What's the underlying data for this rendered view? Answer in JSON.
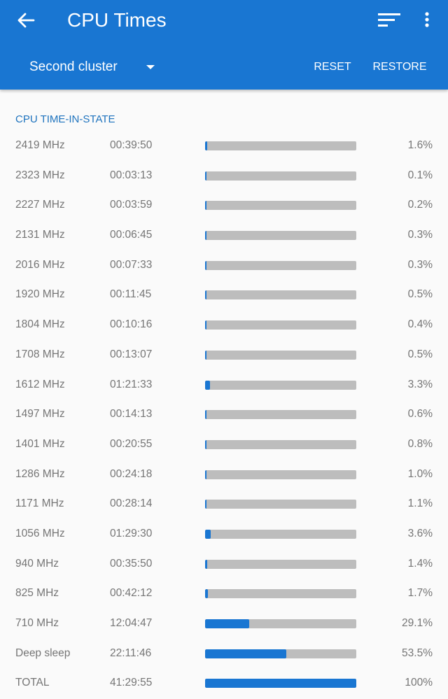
{
  "header": {
    "title": "CPU Times",
    "cluster_selected": "Second cluster",
    "reset_label": "RESET",
    "restore_label": "RESTORE",
    "icons": [
      "back-arrow-icon",
      "sort-icon",
      "more-vert-icon",
      "dropdown-arrow-icon"
    ],
    "colors": {
      "appbar": "#1976d2",
      "accent_text": "#1e73be",
      "bar_fill": "#1976d2",
      "bar_track": "#bdbdbd"
    }
  },
  "section": {
    "title": "CPU TIME-IN-STATE"
  },
  "rows": [
    {
      "freq": "2419 MHz",
      "time": "00:39:50",
      "pct": "1.6%",
      "fraction": 0.016
    },
    {
      "freq": "2323 MHz",
      "time": "00:03:13",
      "pct": "0.1%",
      "fraction": 0.001
    },
    {
      "freq": "2227 MHz",
      "time": "00:03:59",
      "pct": "0.2%",
      "fraction": 0.002
    },
    {
      "freq": "2131 MHz",
      "time": "00:06:45",
      "pct": "0.3%",
      "fraction": 0.003
    },
    {
      "freq": "2016 MHz",
      "time": "00:07:33",
      "pct": "0.3%",
      "fraction": 0.003
    },
    {
      "freq": "1920 MHz",
      "time": "00:11:45",
      "pct": "0.5%",
      "fraction": 0.005
    },
    {
      "freq": "1804 MHz",
      "time": "00:10:16",
      "pct": "0.4%",
      "fraction": 0.004
    },
    {
      "freq": "1708 MHz",
      "time": "00:13:07",
      "pct": "0.5%",
      "fraction": 0.005
    },
    {
      "freq": "1612 MHz",
      "time": "01:21:33",
      "pct": "3.3%",
      "fraction": 0.033
    },
    {
      "freq": "1497 MHz",
      "time": "00:14:13",
      "pct": "0.6%",
      "fraction": 0.006
    },
    {
      "freq": "1401 MHz",
      "time": "00:20:55",
      "pct": "0.8%",
      "fraction": 0.008
    },
    {
      "freq": "1286 MHz",
      "time": "00:24:18",
      "pct": "1.0%",
      "fraction": 0.01
    },
    {
      "freq": "1171 MHz",
      "time": "00:28:14",
      "pct": "1.1%",
      "fraction": 0.011
    },
    {
      "freq": "1056 MHz",
      "time": "01:29:30",
      "pct": "3.6%",
      "fraction": 0.036
    },
    {
      "freq": "940 MHz",
      "time": "00:35:50",
      "pct": "1.4%",
      "fraction": 0.014
    },
    {
      "freq": "825 MHz",
      "time": "00:42:12",
      "pct": "1.7%",
      "fraction": 0.017
    },
    {
      "freq": "710 MHz",
      "time": "12:04:47",
      "pct": "29.1%",
      "fraction": 0.291
    },
    {
      "freq": "Deep sleep",
      "time": "22:11:46",
      "pct": "53.5%",
      "fraction": 0.535
    },
    {
      "freq": "TOTAL",
      "time": "41:29:55",
      "pct": "100%",
      "fraction": 1.0
    }
  ]
}
